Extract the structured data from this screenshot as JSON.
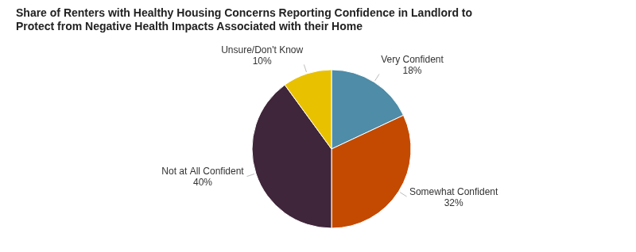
{
  "chart_data": {
    "type": "pie",
    "title": "Share of Renters with Healthy Housing Concerns Reporting Confidence in Landlord to Protect from Negative Health Impacts Associated with their Home",
    "categories": [
      "Very Confident",
      "Somewhat Confident",
      "Not at All Confident",
      "Unsure/Don't Know"
    ],
    "values": [
      18,
      32,
      40,
      10
    ],
    "value_labels": [
      "18%",
      "32%",
      "40%",
      "10%"
    ],
    "colors": [
      "#4e8ca8",
      "#c34a00",
      "#40263a",
      "#e8c100"
    ],
    "data_labels": true
  }
}
